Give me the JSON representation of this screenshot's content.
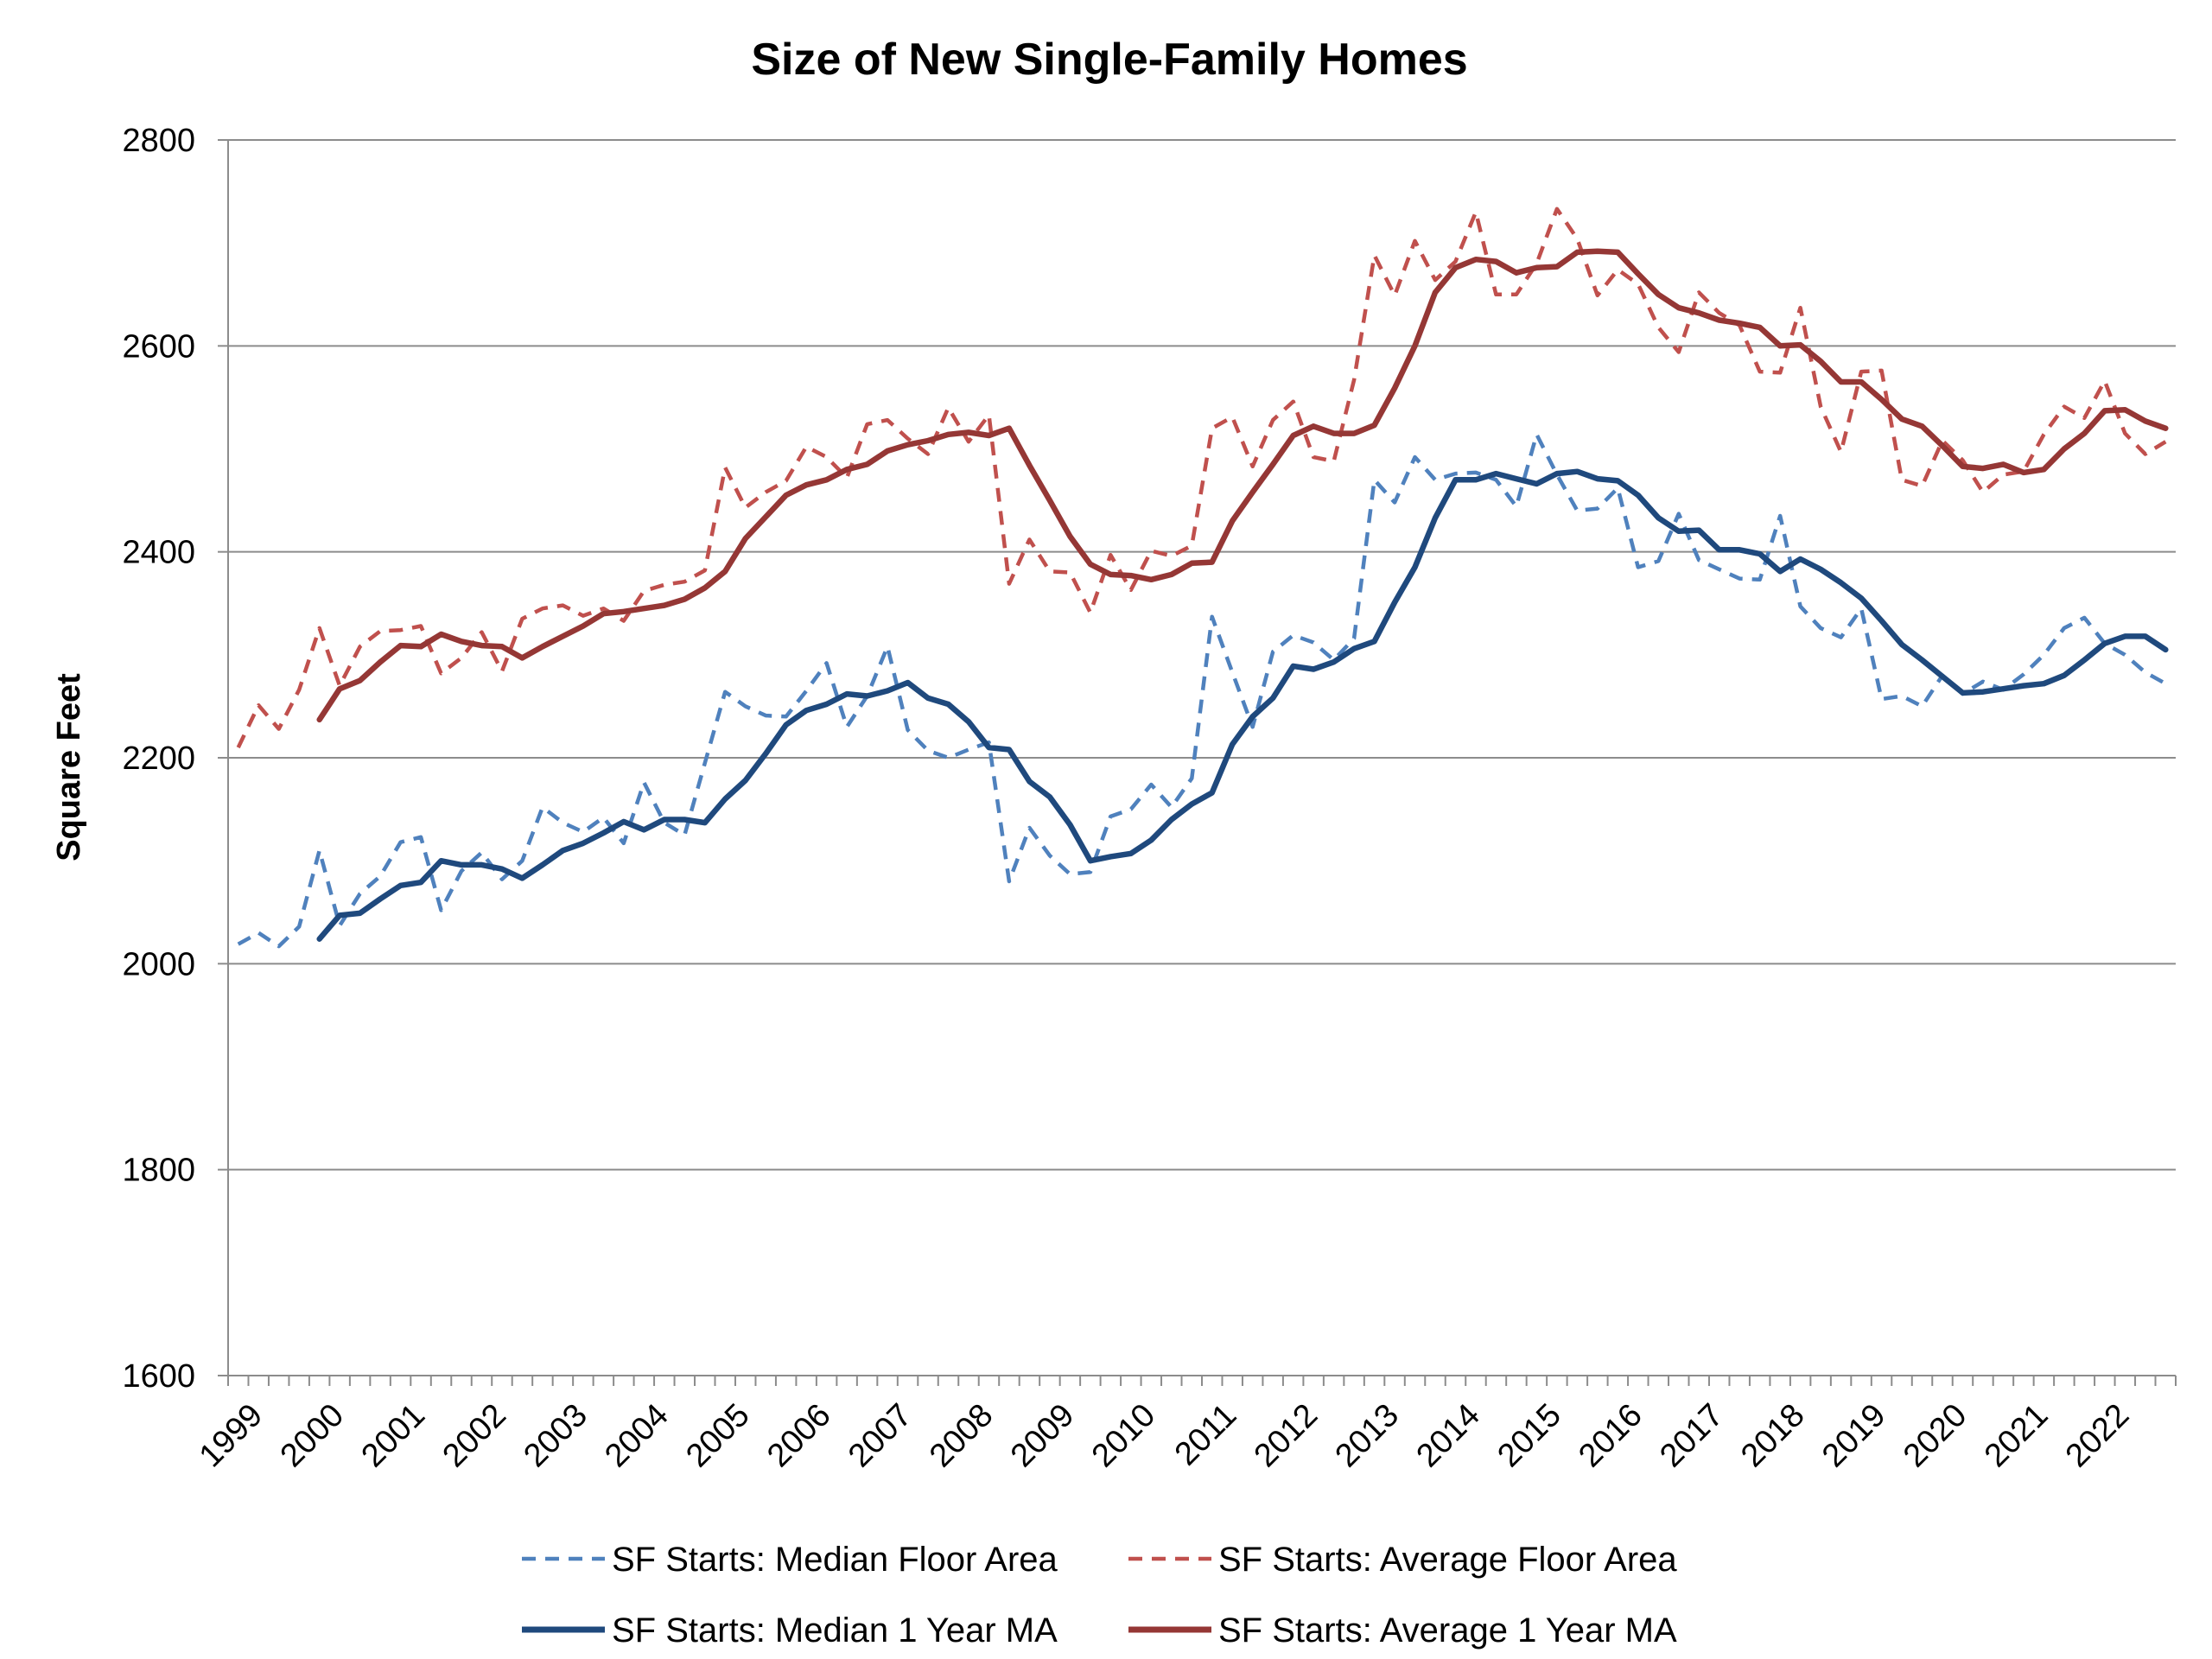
{
  "chart_data": {
    "type": "line",
    "title": "Size of New Single-Family Homes",
    "xlabel": "",
    "ylabel": "Square Feet",
    "ylim": [
      1600,
      2800
    ],
    "y_ticks": [
      1600,
      1800,
      2000,
      2200,
      2400,
      2600,
      2800
    ],
    "x_tick_labels": [
      "1999",
      "2000",
      "2001",
      "2002",
      "2003",
      "2004",
      "2005",
      "2006",
      "2007",
      "2008",
      "2009",
      "2010",
      "2011",
      "2012",
      "2013",
      "2014",
      "2015",
      "2016",
      "2017",
      "2018",
      "2019",
      "2020",
      "2021",
      "2022"
    ],
    "x_unit": "quarter (first year 1999, Q1–Q4 per year)",
    "grid": "horizontal",
    "legend_position": "bottom",
    "series": [
      {
        "name": "SF Starts: Median Floor Area",
        "color": "#4F81BD",
        "style": "dashed",
        "start_quarter_index": 0,
        "values": [
          2019,
          2030,
          2017,
          2036,
          2110,
          2037,
          2068,
          2085,
          2118,
          2123,
          2052,
          2090,
          2108,
          2082,
          2100,
          2152,
          2137,
          2128,
          2142,
          2117,
          2176,
          2137,
          2125,
          2195,
          2264,
          2250,
          2241,
          2240,
          2265,
          2292,
          2230,
          2260,
          2308,
          2227,
          2207,
          2200,
          2208,
          2215,
          2080,
          2132,
          2105,
          2087,
          2089,
          2143,
          2150,
          2174,
          2152,
          2180,
          2337,
          2283,
          2230,
          2303,
          2319,
          2312,
          2295,
          2316,
          2470,
          2448,
          2492,
          2470,
          2476,
          2477,
          2470,
          2444,
          2514,
          2475,
          2440,
          2442,
          2462,
          2385,
          2391,
          2437,
          2392,
          2383,
          2374,
          2373,
          2435,
          2347,
          2326,
          2317,
          2345,
          2257,
          2260,
          2250,
          2280,
          2262,
          2274,
          2266,
          2281,
          2300,
          2326,
          2336,
          2311,
          2300,
          2283,
          2272
        ]
      },
      {
        "name": "SF Starts: Average Floor Area",
        "color": "#C0504D",
        "style": "dashed",
        "start_quarter_index": 0,
        "values": [
          2210,
          2251,
          2228,
          2266,
          2326,
          2270,
          2308,
          2323,
          2324,
          2328,
          2282,
          2297,
          2322,
          2284,
          2335,
          2345,
          2348,
          2338,
          2345,
          2333,
          2362,
          2368,
          2371,
          2382,
          2482,
          2443,
          2458,
          2469,
          2502,
          2492,
          2472,
          2524,
          2528,
          2510,
          2495,
          2540,
          2507,
          2533,
          2369,
          2412,
          2381,
          2380,
          2341,
          2397,
          2363,
          2401,
          2396,
          2406,
          2520,
          2531,
          2483,
          2528,
          2546,
          2492,
          2488,
          2567,
          2688,
          2649,
          2702,
          2664,
          2682,
          2730,
          2650,
          2650,
          2680,
          2733,
          2704,
          2649,
          2674,
          2660,
          2618,
          2594,
          2652,
          2632,
          2620,
          2575,
          2574,
          2637,
          2541,
          2497,
          2575,
          2576,
          2470,
          2464,
          2508,
          2489,
          2458,
          2475,
          2478,
          2514,
          2541,
          2530,
          2566,
          2515,
          2495,
          2507
        ]
      },
      {
        "name": "SF Starts: Median 1 Year MA",
        "color": "#1F497D",
        "style": "solid",
        "start_quarter_index": 4,
        "values": [
          2024,
          2047,
          2049,
          2063,
          2076,
          2079,
          2100,
          2096,
          2096,
          2092,
          2083,
          2096,
          2110,
          2117,
          2127,
          2138,
          2130,
          2140,
          2140,
          2137,
          2160,
          2178,
          2204,
          2232,
          2246,
          2252,
          2262,
          2260,
          2265,
          2273,
          2258,
          2252,
          2235,
          2210,
          2208,
          2177,
          2162,
          2135,
          2100,
          2104,
          2107,
          2120,
          2140,
          2155,
          2166,
          2213,
          2240,
          2258,
          2289,
          2286,
          2293,
          2306,
          2313,
          2351,
          2385,
          2433,
          2470,
          2470,
          2476,
          2471,
          2466,
          2476,
          2478,
          2471,
          2469,
          2455,
          2433,
          2420,
          2421,
          2402,
          2402,
          2398,
          2381,
          2393,
          2383,
          2370,
          2355,
          2333,
          2310,
          2295,
          2279,
          2263,
          2264,
          2267,
          2270,
          2272,
          2280,
          2295,
          2311,
          2318,
          2318,
          2305
        ]
      },
      {
        "name": "SF Starts: Average 1 Year MA",
        "color": "#953735",
        "style": "solid",
        "start_quarter_index": 4,
        "values": [
          2237,
          2267,
          2275,
          2293,
          2309,
          2308,
          2320,
          2313,
          2309,
          2308,
          2297,
          2308,
          2318,
          2328,
          2340,
          2342,
          2345,
          2348,
          2354,
          2365,
          2381,
          2413,
          2434,
          2455,
          2465,
          2470,
          2480,
          2485,
          2498,
          2504,
          2508,
          2514,
          2516,
          2513,
          2520,
          2484,
          2450,
          2415,
          2388,
          2378,
          2377,
          2373,
          2378,
          2389,
          2390,
          2430,
          2458,
          2485,
          2513,
          2522,
          2515,
          2515,
          2523,
          2559,
          2600,
          2652,
          2676,
          2684,
          2682,
          2671,
          2676,
          2677,
          2691,
          2692,
          2691,
          2670,
          2650,
          2637,
          2632,
          2625,
          2622,
          2618,
          2600,
          2601,
          2585,
          2565,
          2565,
          2548,
          2529,
          2522,
          2503,
          2483,
          2481,
          2485,
          2477,
          2480,
          2500,
          2515,
          2537,
          2538,
          2527,
          2520
        ]
      }
    ]
  }
}
